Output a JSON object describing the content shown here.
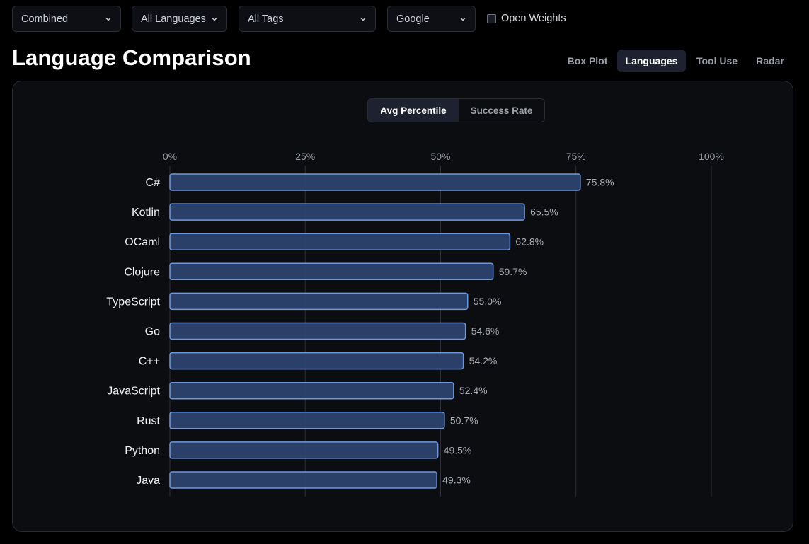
{
  "filters": {
    "mode": "Combined",
    "language": "All Languages",
    "tags": "All Tags",
    "provider": "Google",
    "open_weights_label": "Open Weights"
  },
  "page_title": "Language Comparison",
  "view_tabs": [
    "Box Plot",
    "Languages",
    "Tool Use",
    "Radar"
  ],
  "active_view": "Languages",
  "metric_toggle": {
    "options": [
      "Avg Percentile",
      "Success Rate"
    ],
    "active": "Avg Percentile"
  },
  "colors": {
    "bar_fill": "#2e4470",
    "bar_stroke": "#6f97e0",
    "grid": "#2c2f38"
  },
  "chart_data": {
    "type": "bar",
    "orientation": "horizontal",
    "categories": [
      "C#",
      "Kotlin",
      "OCaml",
      "Clojure",
      "TypeScript",
      "Go",
      "C++",
      "JavaScript",
      "Rust",
      "Python",
      "Java"
    ],
    "values": [
      75.8,
      65.5,
      62.8,
      59.7,
      55.0,
      54.6,
      54.2,
      52.4,
      50.7,
      49.5,
      49.3
    ],
    "value_labels": [
      "75.8%",
      "65.5%",
      "62.8%",
      "59.7%",
      "55.0%",
      "54.6%",
      "54.2%",
      "52.4%",
      "50.7%",
      "49.5%",
      "49.3%"
    ],
    "xlim": [
      0,
      100
    ],
    "xticks": [
      0,
      25,
      50,
      75,
      100
    ],
    "xtick_labels": [
      "0%",
      "25%",
      "50%",
      "75%",
      "100%"
    ],
    "grid": true,
    "axis_position": "top"
  }
}
